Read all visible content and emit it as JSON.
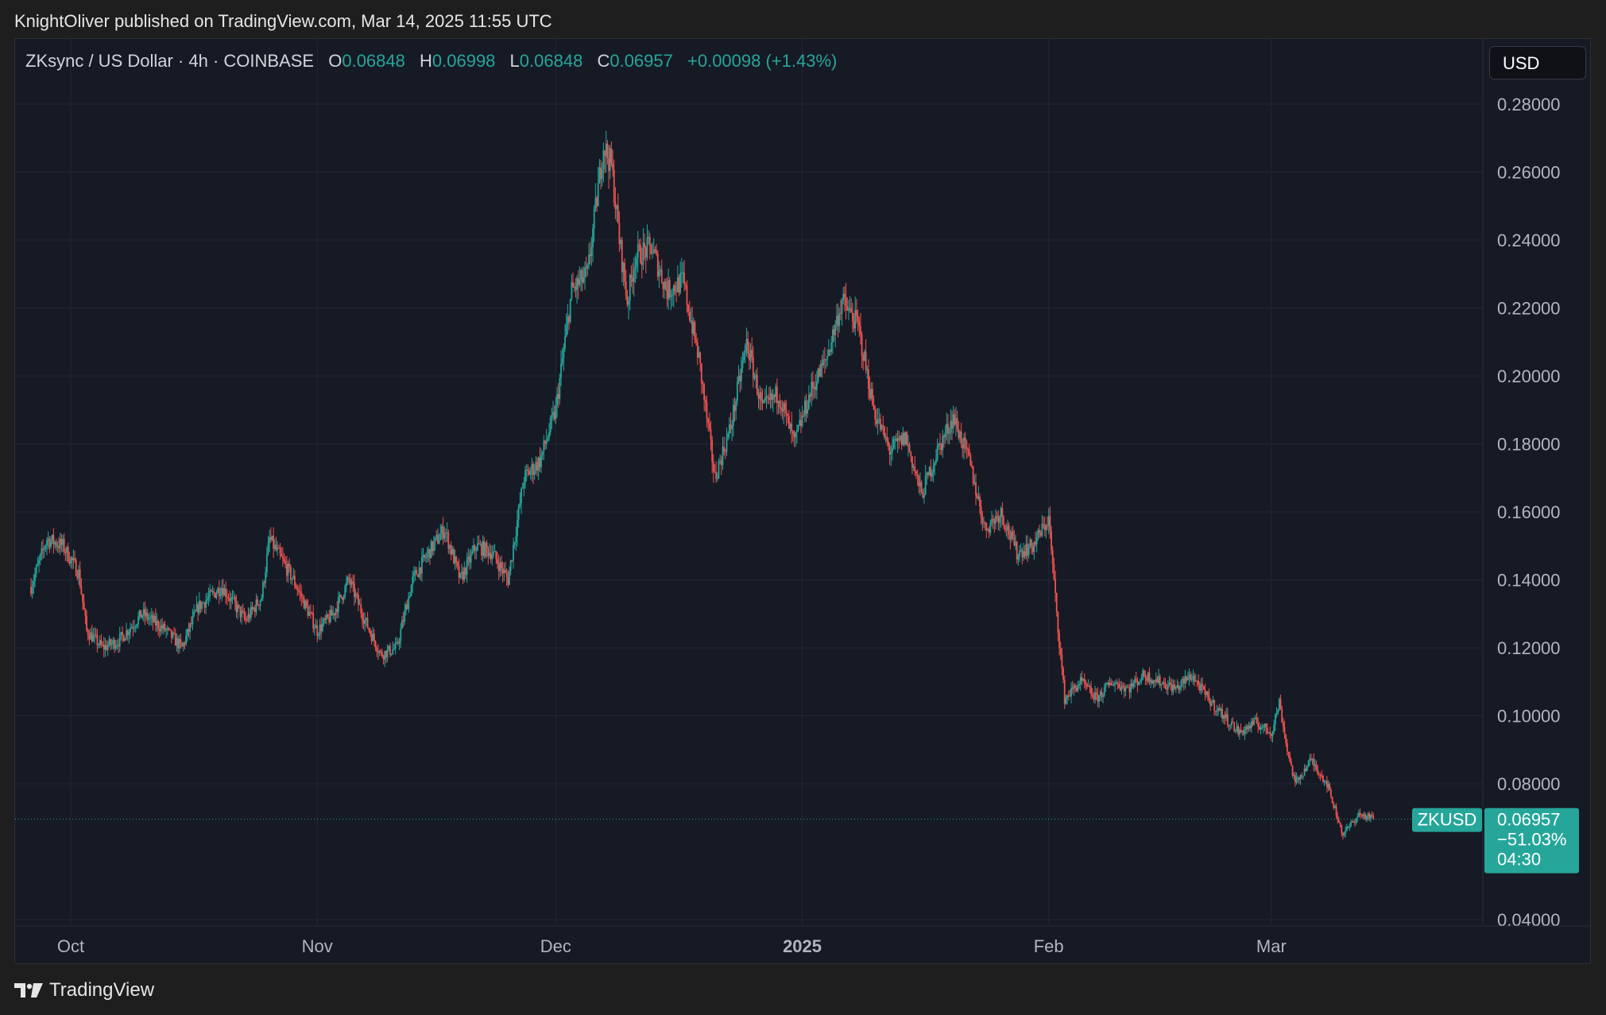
{
  "header": {
    "published": "KnightOliver published on TradingView.com, Mar 14, 2025 11:55 UTC"
  },
  "legend": {
    "symbol": "ZKsync / US Dollar · 4h · COINBASE",
    "open_label": "O",
    "open": "0.06848",
    "high_label": "H",
    "high": "0.06998",
    "low_label": "L",
    "low": "0.06848",
    "close_label": "C",
    "close": "0.06957",
    "change": "+0.00098 (+1.43%)"
  },
  "currency": "USD",
  "footer": {
    "brand": "TradingView"
  },
  "colors": {
    "up": "#26a69a",
    "down": "#ef5350",
    "background": "#161a25",
    "grid": "#232734"
  },
  "chart_data": {
    "type": "candlestick",
    "title": "ZKsync / US Dollar · 4h · COINBASE",
    "interval": "4h",
    "yscale": "linear",
    "ylim": [
      0.04,
      0.28
    ],
    "y_ticks": [
      "0.28000",
      "0.26000",
      "0.24000",
      "0.22000",
      "0.20000",
      "0.18000",
      "0.16000",
      "0.14000",
      "0.12000",
      "0.10000",
      "0.08000",
      "0.04000"
    ],
    "x_ticks": [
      {
        "label": "Oct",
        "date": "2024-10-01"
      },
      {
        "label": "Nov",
        "date": "2024-11-01"
      },
      {
        "label": "Dec",
        "date": "2024-12-01"
      },
      {
        "label": "2025",
        "date": "2025-01-01",
        "bold": true
      },
      {
        "label": "Feb",
        "date": "2025-02-01"
      },
      {
        "label": "Mar",
        "date": "2025-03-01"
      }
    ],
    "xlim": [
      "2024-09-24",
      "2025-03-26"
    ],
    "grid": true,
    "price_path": [
      [
        "2024-09-26",
        0.138
      ],
      [
        "2024-09-28",
        0.152
      ],
      [
        "2024-09-30",
        0.15
      ],
      [
        "2024-10-02",
        0.142
      ],
      [
        "2024-10-03",
        0.125
      ],
      [
        "2024-10-05",
        0.12
      ],
      [
        "2024-10-07",
        0.122
      ],
      [
        "2024-10-10",
        0.13
      ],
      [
        "2024-10-13",
        0.125
      ],
      [
        "2024-10-15",
        0.12
      ],
      [
        "2024-10-17",
        0.132
      ],
      [
        "2024-10-20",
        0.138
      ],
      [
        "2024-10-23",
        0.128
      ],
      [
        "2024-10-25",
        0.135
      ],
      [
        "2024-10-26",
        0.152
      ],
      [
        "2024-10-29",
        0.14
      ],
      [
        "2024-11-01",
        0.125
      ],
      [
        "2024-11-03",
        0.13
      ],
      [
        "2024-11-05",
        0.14
      ],
      [
        "2024-11-07",
        0.128
      ],
      [
        "2024-11-09",
        0.118
      ],
      [
        "2024-11-11",
        0.12
      ],
      [
        "2024-11-13",
        0.14
      ],
      [
        "2024-11-15",
        0.148
      ],
      [
        "2024-11-17",
        0.155
      ],
      [
        "2024-11-19",
        0.14
      ],
      [
        "2024-11-21",
        0.15
      ],
      [
        "2024-11-23",
        0.148
      ],
      [
        "2024-11-25",
        0.14
      ],
      [
        "2024-11-27",
        0.17
      ],
      [
        "2024-11-29",
        0.175
      ],
      [
        "2024-12-01",
        0.19
      ],
      [
        "2024-12-03",
        0.225
      ],
      [
        "2024-12-05",
        0.23
      ],
      [
        "2024-12-07",
        0.268
      ],
      [
        "2024-12-08",
        0.262
      ],
      [
        "2024-12-09",
        0.24
      ],
      [
        "2024-12-10",
        0.222
      ],
      [
        "2024-12-11",
        0.235
      ],
      [
        "2024-12-13",
        0.238
      ],
      [
        "2024-12-15",
        0.225
      ],
      [
        "2024-12-17",
        0.228
      ],
      [
        "2024-12-19",
        0.205
      ],
      [
        "2024-12-21",
        0.17
      ],
      [
        "2024-12-23",
        0.185
      ],
      [
        "2024-12-25",
        0.21
      ],
      [
        "2024-12-27",
        0.19
      ],
      [
        "2024-12-29",
        0.195
      ],
      [
        "2024-12-31",
        0.18
      ],
      [
        "2025-01-02",
        0.195
      ],
      [
        "2025-01-04",
        0.205
      ],
      [
        "2025-01-06",
        0.222
      ],
      [
        "2025-01-08",
        0.215
      ],
      [
        "2025-01-10",
        0.19
      ],
      [
        "2025-01-12",
        0.178
      ],
      [
        "2025-01-14",
        0.182
      ],
      [
        "2025-01-16",
        0.165
      ],
      [
        "2025-01-18",
        0.178
      ],
      [
        "2025-01-20",
        0.188
      ],
      [
        "2025-01-22",
        0.175
      ],
      [
        "2025-01-24",
        0.155
      ],
      [
        "2025-01-26",
        0.16
      ],
      [
        "2025-01-28",
        0.148
      ],
      [
        "2025-01-30",
        0.15
      ],
      [
        "2025-02-01",
        0.158
      ],
      [
        "2025-02-02",
        0.13
      ],
      [
        "2025-02-03",
        0.105
      ],
      [
        "2025-02-05",
        0.11
      ],
      [
        "2025-02-07",
        0.105
      ],
      [
        "2025-02-09",
        0.11
      ],
      [
        "2025-02-11",
        0.108
      ],
      [
        "2025-02-13",
        0.112
      ],
      [
        "2025-02-15",
        0.11
      ],
      [
        "2025-02-17",
        0.108
      ],
      [
        "2025-02-19",
        0.112
      ],
      [
        "2025-02-21",
        0.105
      ],
      [
        "2025-02-23",
        0.1
      ],
      [
        "2025-02-25",
        0.095
      ],
      [
        "2025-02-27",
        0.098
      ],
      [
        "2025-03-01",
        0.095
      ],
      [
        "2025-03-02",
        0.104
      ],
      [
        "2025-03-03",
        0.09
      ],
      [
        "2025-03-04",
        0.08
      ],
      [
        "2025-03-06",
        0.087
      ],
      [
        "2025-03-08",
        0.08
      ],
      [
        "2025-03-10",
        0.065
      ],
      [
        "2025-03-12",
        0.071
      ],
      [
        "2025-03-14",
        0.0696
      ]
    ],
    "last_price": {
      "symbol": "ZKUSD",
      "value": 0.06957,
      "label": "0.06957",
      "change_pct": "−51.03%",
      "countdown": "04:30"
    }
  }
}
